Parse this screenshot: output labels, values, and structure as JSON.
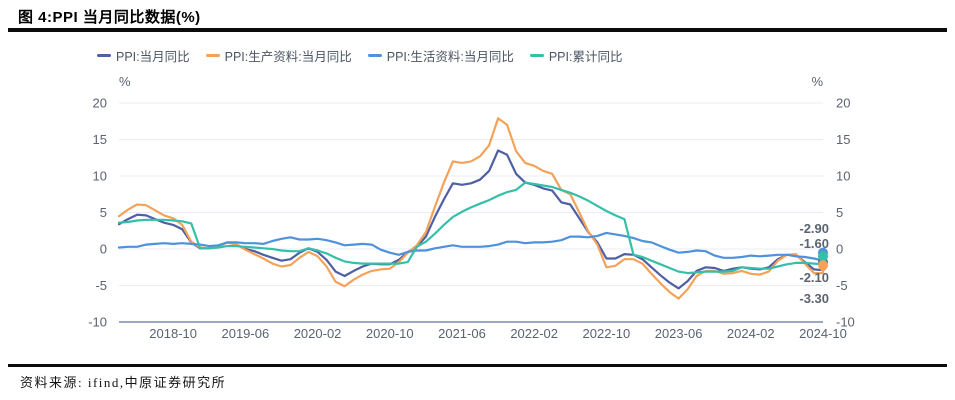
{
  "header": {
    "title": "图 4:PPI 当月同比数据(%)"
  },
  "footer": {
    "source": "资料来源: ifind,中原证券研究所"
  },
  "chart_data": {
    "type": "line",
    "title": "PPI 当月同比数据(%)",
    "frequency": "monthly",
    "x_start": "2018-04",
    "x_end": "2024-10",
    "x_tick_labels": [
      "2018-10",
      "2019-06",
      "2020-02",
      "2020-10",
      "2021-06",
      "2022-02",
      "2022-10",
      "2023-06",
      "2024-02",
      "2024-10"
    ],
    "y_unit_label": "%",
    "ylim": [
      -10,
      20
    ],
    "yticks": [
      20,
      15,
      10,
      5,
      0,
      -5,
      -10
    ],
    "grid": true,
    "legend_position": "top",
    "colors": {
      "grid": "#eaedf6",
      "axis_line": "#7c89b8",
      "tick_text": "#5b6370"
    },
    "series": [
      {
        "name": "PPI:当月同比",
        "color": "#4e5fa3",
        "end_label": "-2.90",
        "values": [
          3.4,
          4.1,
          4.7,
          4.6,
          4.1,
          3.6,
          3.3,
          2.7,
          0.9,
          0.1,
          0.1,
          0.4,
          0.9,
          0.6,
          0.0,
          -0.3,
          -0.8,
          -1.2,
          -1.6,
          -1.4,
          -0.5,
          0.1,
          -0.4,
          -1.5,
          -3.1,
          -3.7,
          -3.0,
          -2.4,
          -2.0,
          -2.1,
          -2.1,
          -1.5,
          -0.4,
          0.3,
          1.7,
          4.4,
          6.8,
          9.0,
          8.8,
          9.0,
          9.5,
          10.7,
          13.5,
          12.9,
          10.3,
          9.1,
          8.8,
          8.3,
          8.0,
          6.4,
          6.1,
          4.2,
          2.3,
          0.9,
          -1.3,
          -1.3,
          -0.7,
          -0.8,
          -1.4,
          -2.5,
          -3.6,
          -4.6,
          -5.4,
          -4.4,
          -3.0,
          -2.5,
          -2.6,
          -3.0,
          -2.7,
          -2.5,
          -2.7,
          -2.8,
          -2.5,
          -1.4,
          -0.8,
          -0.8,
          -1.8,
          -2.8,
          -2.9
        ]
      },
      {
        "name": "PPI:生产资料:当月同比",
        "color": "#f4a259",
        "end_label": "-3.30",
        "values": [
          4.5,
          5.4,
          6.1,
          6.0,
          5.3,
          4.6,
          4.2,
          3.3,
          1.0,
          0.2,
          0.1,
          0.3,
          0.9,
          0.6,
          -0.1,
          -0.7,
          -1.3,
          -2.0,
          -2.4,
          -2.2,
          -1.2,
          -0.4,
          -1.0,
          -2.4,
          -4.5,
          -5.1,
          -4.2,
          -3.5,
          -3.0,
          -2.8,
          -2.7,
          -1.8,
          -0.5,
          0.5,
          2.3,
          5.8,
          9.1,
          12.0,
          11.8,
          12.0,
          12.7,
          14.2,
          17.9,
          17.0,
          13.4,
          11.8,
          11.4,
          10.7,
          10.3,
          8.1,
          7.5,
          5.0,
          2.4,
          0.6,
          -2.5,
          -2.3,
          -1.4,
          -1.4,
          -2.0,
          -3.4,
          -4.7,
          -5.9,
          -6.8,
          -5.5,
          -3.7,
          -3.0,
          -3.0,
          -3.4,
          -3.3,
          -3.0,
          -3.4,
          -3.5,
          -3.1,
          -1.6,
          -0.8,
          -0.7,
          -2.0,
          -3.3,
          -3.3
        ]
      },
      {
        "name": "PPI:生活资料:当月同比",
        "color": "#4e92db",
        "end_label": "-1.60",
        "values": [
          0.2,
          0.3,
          0.3,
          0.6,
          0.7,
          0.8,
          0.7,
          0.8,
          0.7,
          0.6,
          0.4,
          0.5,
          0.9,
          0.9,
          0.8,
          0.8,
          0.7,
          1.1,
          1.4,
          1.6,
          1.3,
          1.3,
          1.4,
          1.2,
          0.9,
          0.5,
          0.6,
          0.7,
          0.6,
          -0.1,
          -0.5,
          -0.8,
          -0.4,
          -0.2,
          -0.2,
          0.1,
          0.3,
          0.5,
          0.3,
          0.3,
          0.3,
          0.4,
          0.6,
          1.0,
          1.0,
          0.8,
          0.9,
          0.9,
          1.0,
          1.2,
          1.7,
          1.7,
          1.6,
          1.8,
          2.2,
          2.0,
          1.8,
          1.5,
          1.1,
          0.9,
          0.4,
          -0.1,
          -0.5,
          -0.4,
          -0.2,
          -0.3,
          -0.9,
          -1.2,
          -1.2,
          -1.1,
          -0.9,
          -1.0,
          -0.9,
          -0.8,
          -0.8,
          -1.0,
          -1.1,
          -1.3,
          -1.6
        ]
      },
      {
        "name": "PPI:累计同比",
        "color": "#35bfa8",
        "end_label": "-2.10",
        "values": [
          3.6,
          3.7,
          3.9,
          4.0,
          4.0,
          4.0,
          3.9,
          3.8,
          3.5,
          0.1,
          0.1,
          0.2,
          0.4,
          0.4,
          0.3,
          0.2,
          0.1,
          0.0,
          -0.2,
          -0.3,
          -0.3,
          0.1,
          -0.2,
          -0.6,
          -1.2,
          -1.7,
          -1.9,
          -2.0,
          -2.0,
          -2.0,
          -2.0,
          -2.0,
          -1.8,
          0.3,
          1.0,
          2.1,
          3.3,
          4.4,
          5.1,
          5.7,
          6.2,
          6.7,
          7.3,
          7.8,
          8.1,
          9.1,
          8.9,
          8.7,
          8.5,
          8.1,
          7.7,
          7.2,
          6.6,
          5.9,
          5.2,
          4.6,
          4.1,
          -0.8,
          -1.1,
          -1.6,
          -2.1,
          -2.6,
          -3.1,
          -3.3,
          -3.2,
          -3.1,
          -3.1,
          -3.1,
          -3.0,
          -2.5,
          -2.6,
          -2.7,
          -2.7,
          -2.4,
          -2.1,
          -1.9,
          -1.9,
          -2.0,
          -2.1
        ]
      }
    ]
  }
}
